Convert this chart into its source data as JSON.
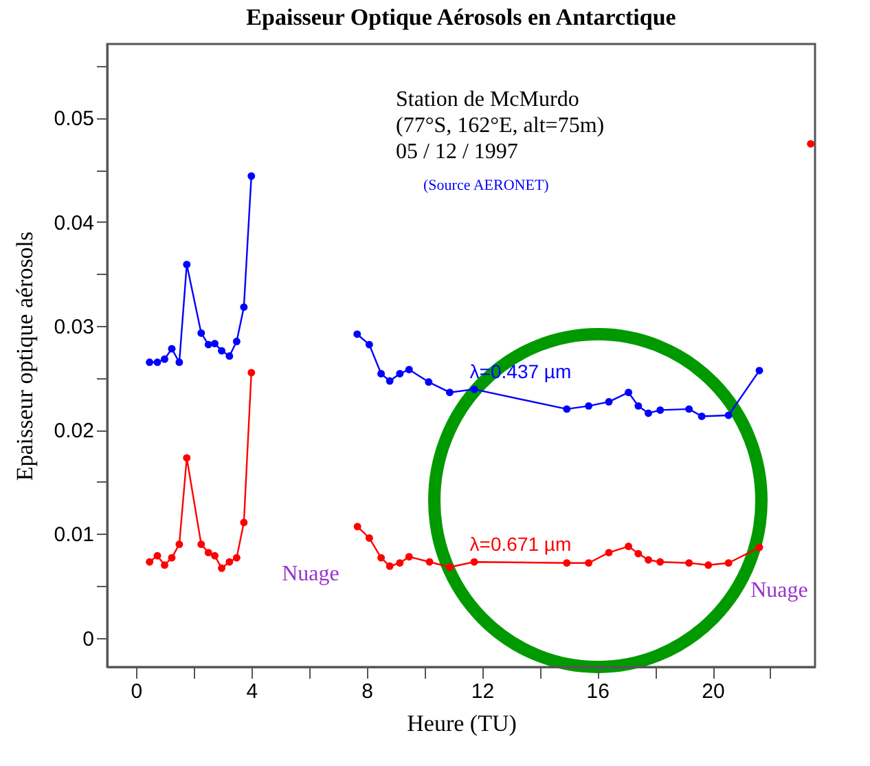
{
  "chart_data": {
    "type": "line",
    "title": "Epaisseur Optique Aérosols en Antarctique",
    "xlabel": "Heure (TU)",
    "ylabel": "Epaisseur optique aérosols",
    "xlim": [
      -1,
      23.55
    ],
    "ylim": [
      -0.0028,
      0.0571
    ],
    "xticks": [
      0,
      {
        "value": 2,
        "label": null
      },
      4,
      {
        "value": 6,
        "label": null
      },
      8,
      {
        "value": 10,
        "label": null
      },
      12,
      {
        "value": 14,
        "label": null
      },
      16,
      {
        "value": 18,
        "label": null
      },
      20,
      {
        "value": 22,
        "label": null
      }
    ],
    "yticks": [
      0,
      {
        "value": 0.005,
        "label": null
      },
      0.01,
      {
        "value": 0.015,
        "label": null
      },
      0.02,
      {
        "value": 0.025,
        "label": null
      },
      0.03,
      {
        "value": 0.035,
        "label": null
      },
      0.04,
      {
        "value": 0.045,
        "label": null
      },
      0.05,
      {
        "value": 0.055,
        "label": null
      }
    ],
    "marker": "circle",
    "grid": false,
    "legend": false,
    "series": [
      {
        "name": "λ=0.437 µm",
        "color": "#0000ff",
        "x": [
          0.47,
          0.74,
          0.99,
          1.24,
          1.5,
          1.76,
          2.26,
          2.51,
          2.73,
          2.97,
          3.24,
          3.49,
          3.74,
          4.0,
          5.7,
          7.67,
          8.09,
          8.5,
          8.8,
          9.15,
          9.47,
          10.15,
          10.88,
          11.73,
          14.94,
          15.7,
          16.4,
          17.08,
          17.42,
          17.77,
          18.18,
          19.18,
          19.62,
          20.55,
          21.62
        ],
        "values": [
          0.0265,
          0.0265,
          0.0268,
          0.0278,
          0.0265,
          0.0359,
          0.0293,
          0.0282,
          0.0283,
          0.0276,
          0.0271,
          0.0285,
          0.0318,
          0.0444,
          null,
          0.0292,
          0.0282,
          0.0254,
          0.0247,
          0.0254,
          0.0258,
          0.0246,
          0.0236,
          0.0239,
          0.022,
          0.0223,
          0.0227,
          0.0236,
          0.0223,
          0.0216,
          0.0219,
          0.022,
          0.0213,
          0.0214,
          0.0257
        ]
      },
      {
        "name": "λ=0.671 µm",
        "color": "#ff0000",
        "x": [
          0.47,
          0.74,
          0.99,
          1.24,
          1.5,
          1.76,
          2.26,
          2.51,
          2.73,
          2.97,
          3.24,
          3.49,
          3.74,
          4.0,
          5.7,
          7.68,
          8.09,
          8.5,
          8.8,
          9.15,
          9.47,
          10.18,
          10.88,
          11.73,
          14.94,
          15.7,
          16.4,
          17.08,
          17.42,
          17.77,
          18.18,
          19.18,
          19.85,
          20.55,
          21.62,
          22.3,
          23.4
        ],
        "values": [
          0.0073,
          0.0079,
          0.007,
          0.0077,
          0.009,
          0.0173,
          0.009,
          0.0082,
          0.0079,
          0.0067,
          0.0073,
          0.0077,
          0.0111,
          0.0255,
          null,
          0.0107,
          0.0096,
          0.0077,
          0.0069,
          0.0072,
          0.0078,
          0.0073,
          0.0068,
          0.0073,
          0.0072,
          0.0072,
          0.0082,
          0.0088,
          0.0081,
          0.0075,
          0.0073,
          0.0072,
          0.007,
          0.0072,
          0.0087,
          null,
          0.0475
        ]
      }
    ],
    "annotations": [
      "Station de McMurdo",
      "(77°S, 162°E, alt=75m)",
      "05 / 12 / 1997",
      "(Source AERONET)",
      "Nuage",
      "Nuage"
    ]
  }
}
